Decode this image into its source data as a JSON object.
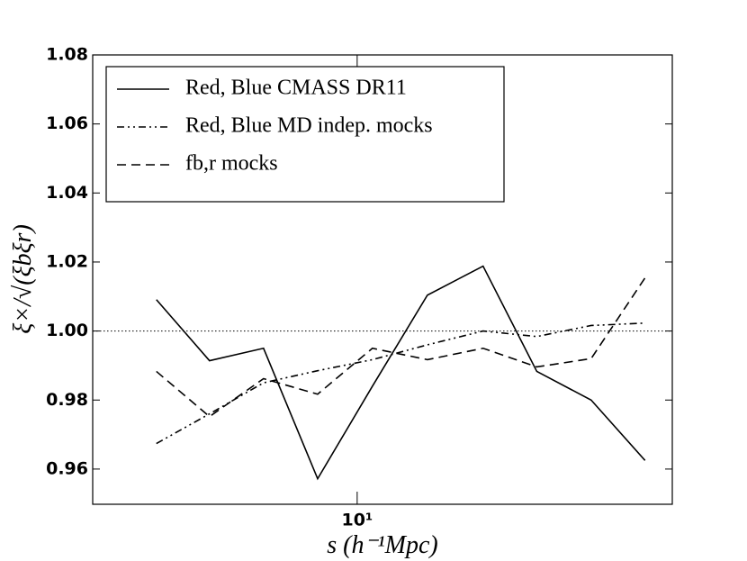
{
  "chart_data": {
    "type": "line",
    "x_label": "s  (h⁻¹Mpc)",
    "y_label": "ξ×/√(ξbξr)",
    "x": [
      4.25,
      5.33,
      6.71,
      8.45,
      10.67,
      13.49,
      17.1,
      21.5,
      27.1,
      34.1
    ],
    "series": [
      {
        "name": "Red, Blue CMASS DR11",
        "color": "#000000",
        "dash": "solid",
        "values": [
          1.0091,
          0.9914,
          0.995,
          0.9572,
          0.984,
          1.0104,
          1.0188,
          0.9883,
          0.98,
          0.9625
        ]
      },
      {
        "name": "Red, Blue MD indep. mocks",
        "color": "#000000",
        "dash": "dashdot",
        "values": [
          0.9674,
          0.976,
          0.985,
          0.9885,
          0.9917,
          0.996,
          1.0,
          0.9984,
          1.0016,
          1.0023
        ]
      },
      {
        "name": "fb,r mocks",
        "color": "#000000",
        "dash": "dashed",
        "values": [
          0.9883,
          0.9752,
          0.9862,
          0.9817,
          0.995,
          0.9917,
          0.995,
          0.9896,
          0.992,
          1.0154
        ]
      }
    ],
    "reference_line": 1.0,
    "xlim": [
      3.24,
      38.3
    ],
    "x_log": true,
    "xticks": [
      {
        "value": 10,
        "label": "10¹"
      }
    ],
    "ylim": [
      0.9498,
      1.08
    ],
    "yticks": [
      0.96,
      0.98,
      {
        "value": 1.0,
        "label": "1.00"
      },
      1.02,
      1.04,
      1.06,
      1.08
    ],
    "legend": "upper left"
  }
}
